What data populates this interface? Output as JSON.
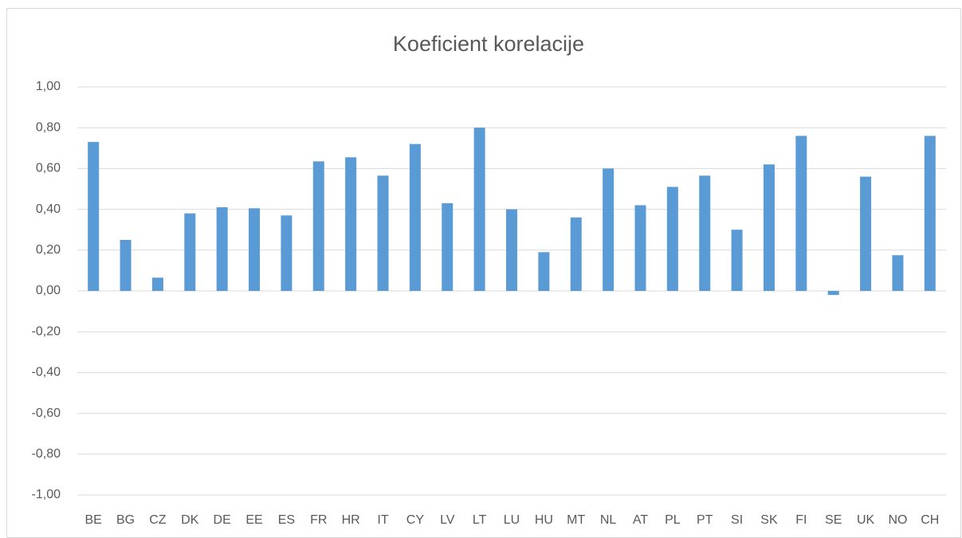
{
  "chart_data": {
    "type": "bar",
    "title": "Koeficient korelacije",
    "categories": [
      "BE",
      "BG",
      "CZ",
      "DK",
      "DE",
      "EE",
      "ES",
      "FR",
      "HR",
      "IT",
      "CY",
      "LV",
      "LT",
      "LU",
      "HU",
      "MT",
      "NL",
      "AT",
      "PL",
      "PT",
      "SI",
      "SK",
      "FI",
      "SE",
      "UK",
      "NO",
      "CH"
    ],
    "values": [
      0.73,
      0.25,
      0.065,
      0.38,
      0.41,
      0.405,
      0.37,
      0.635,
      0.655,
      0.565,
      0.72,
      0.43,
      0.8,
      0.4,
      0.19,
      0.36,
      0.6,
      0.42,
      0.51,
      0.565,
      0.3,
      0.62,
      0.76,
      -0.02,
      0.56,
      0.175,
      0.76
    ],
    "color": "#5b9bd5",
    "ylim": [
      -1,
      1
    ],
    "yticks": [
      {
        "value": -1,
        "label": "-1,00"
      },
      {
        "value": -0.8,
        "label": "-0,80"
      },
      {
        "value": -0.6,
        "label": "-0,60"
      },
      {
        "value": -0.4,
        "label": "-0,40"
      },
      {
        "value": -0.2,
        "label": "-0,20"
      },
      {
        "value": 0,
        "label": "0,00"
      },
      {
        "value": 0.2,
        "label": "0,20"
      },
      {
        "value": 0.4,
        "label": "0,40"
      },
      {
        "value": 0.6,
        "label": "0,60"
      },
      {
        "value": 0.8,
        "label": "0,80"
      },
      {
        "value": 1,
        "label": "1,00"
      }
    ],
    "grid": true
  }
}
